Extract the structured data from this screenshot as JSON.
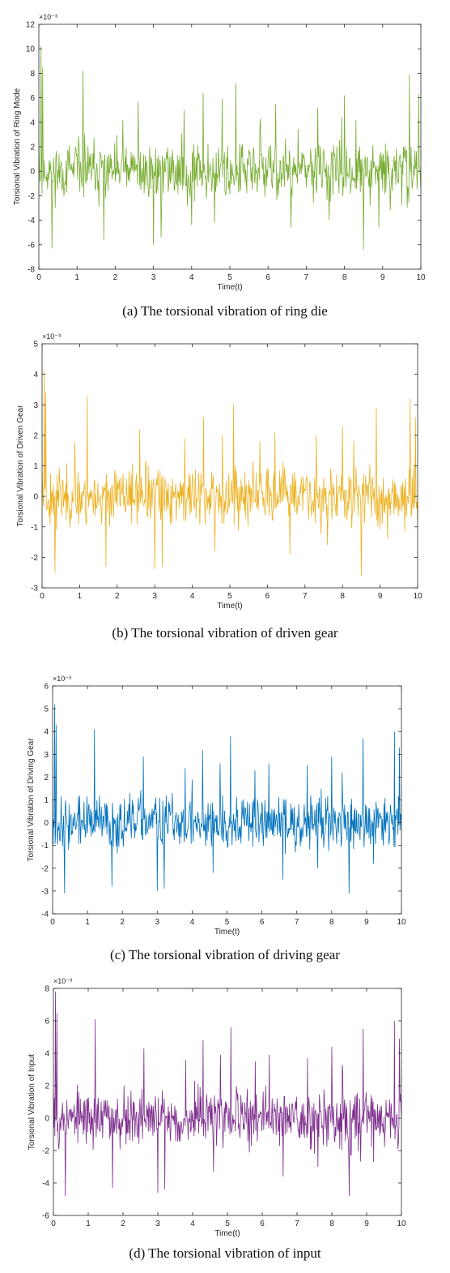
{
  "chart_data": [
    {
      "type": "line",
      "panel": "a",
      "caption": "(a) The torsional vibration of ring die",
      "xlabel": "Time(t)",
      "ylabel": "Torsional Vibration of Ring Mode",
      "y_exponent_label": "×10⁻³",
      "xlim": [
        0,
        10
      ],
      "ylim": [
        -8,
        12
      ],
      "xticks": [
        0,
        1,
        2,
        3,
        4,
        5,
        6,
        7,
        8,
        9,
        10
      ],
      "yticks": [
        -8,
        -6,
        -4,
        -2,
        0,
        2,
        4,
        6,
        8,
        10,
        12
      ],
      "color": "#77ac30",
      "peak": 10.2,
      "spikes": [
        [
          0.05,
          10.2
        ],
        [
          0.1,
          8.5
        ],
        [
          0.35,
          -6.3
        ],
        [
          1.15,
          8.2
        ],
        [
          1.7,
          -5.6
        ],
        [
          2.2,
          4.2
        ],
        [
          2.6,
          5.7
        ],
        [
          3.0,
          -6.0
        ],
        [
          3.2,
          -5.4
        ],
        [
          3.8,
          5.0
        ],
        [
          4.0,
          -4.4
        ],
        [
          4.3,
          6.4
        ],
        [
          4.6,
          -4.2
        ],
        [
          4.8,
          5.9
        ],
        [
          5.15,
          7.2
        ],
        [
          5.8,
          4.3
        ],
        [
          6.2,
          5.5
        ],
        [
          6.6,
          -4.6
        ],
        [
          7.3,
          5.2
        ],
        [
          7.6,
          -4.0
        ],
        [
          8.0,
          6.2
        ],
        [
          8.3,
          4.2
        ],
        [
          8.5,
          -6.4
        ],
        [
          8.9,
          -4.6
        ],
        [
          9.2,
          -3.2
        ],
        [
          9.7,
          7.9
        ],
        [
          9.95,
          6.3
        ]
      ],
      "noise": 2.0,
      "seed": 11
    },
    {
      "type": "line",
      "panel": "b",
      "caption": "(b) The torsional vibration of driven gear",
      "xlabel": "Time(t)",
      "ylabel": "Torsional Vibration of Driven Gear",
      "y_exponent_label": "×10⁻³",
      "xlim": [
        0,
        10
      ],
      "ylim": [
        -3,
        5
      ],
      "xticks": [
        0,
        1,
        2,
        3,
        4,
        5,
        6,
        7,
        8,
        9,
        10
      ],
      "yticks": [
        -3,
        -2,
        -1,
        0,
        1,
        2,
        3,
        4,
        5
      ],
      "color": "#edb120",
      "peak": 4.1,
      "spikes": [
        [
          0.05,
          4.1
        ],
        [
          0.1,
          3.4
        ],
        [
          0.35,
          -2.5
        ],
        [
          1.2,
          3.3
        ],
        [
          1.7,
          -2.3
        ],
        [
          2.6,
          2.2
        ],
        [
          3.0,
          -2.4
        ],
        [
          3.2,
          -2.3
        ],
        [
          3.8,
          1.9
        ],
        [
          4.3,
          2.6
        ],
        [
          4.6,
          -1.8
        ],
        [
          4.8,
          2.0
        ],
        [
          5.1,
          3.0
        ],
        [
          5.8,
          1.8
        ],
        [
          6.2,
          2.1
        ],
        [
          6.6,
          -1.9
        ],
        [
          7.3,
          2.0
        ],
        [
          7.6,
          -1.6
        ],
        [
          8.0,
          2.3
        ],
        [
          8.3,
          1.8
        ],
        [
          8.5,
          -2.6
        ],
        [
          8.9,
          2.9
        ],
        [
          9.2,
          -1.4
        ],
        [
          9.8,
          3.2
        ],
        [
          9.95,
          2.6
        ]
      ],
      "noise": 0.8,
      "seed": 23
    },
    {
      "type": "line",
      "panel": "c",
      "caption": "(c) The torsional vibration of driving gear",
      "xlabel": "Time(t)",
      "ylabel": "Torsional Vibration of Driving Gear",
      "y_exponent_label": "×10⁻³",
      "xlim": [
        0,
        10
      ],
      "ylim": [
        -4,
        6
      ],
      "xticks": [
        0,
        1,
        2,
        3,
        4,
        5,
        6,
        7,
        8,
        9,
        10
      ],
      "yticks": [
        -4,
        -3,
        -2,
        -1,
        0,
        1,
        2,
        3,
        4,
        5,
        6
      ],
      "color": "#0072bd",
      "peak": 5.2,
      "spikes": [
        [
          0.05,
          5.2
        ],
        [
          0.1,
          4.3
        ],
        [
          0.35,
          -3.1
        ],
        [
          1.2,
          4.1
        ],
        [
          1.7,
          -2.8
        ],
        [
          2.6,
          2.9
        ],
        [
          3.0,
          -3.0
        ],
        [
          3.2,
          -2.9
        ],
        [
          3.8,
          2.4
        ],
        [
          4.3,
          3.2
        ],
        [
          4.6,
          -2.2
        ],
        [
          4.8,
          2.6
        ],
        [
          5.1,
          3.8
        ],
        [
          5.8,
          2.3
        ],
        [
          6.2,
          2.6
        ],
        [
          6.6,
          -2.5
        ],
        [
          7.3,
          2.5
        ],
        [
          7.6,
          -2.0
        ],
        [
          8.0,
          2.9
        ],
        [
          8.3,
          2.2
        ],
        [
          8.5,
          -3.1
        ],
        [
          8.9,
          3.7
        ],
        [
          9.2,
          -1.8
        ],
        [
          9.8,
          4.0
        ],
        [
          9.95,
          3.3
        ]
      ],
      "noise": 1.0,
      "seed": 37
    },
    {
      "type": "line",
      "panel": "d",
      "caption": "(d) The torsional vibration of input",
      "xlabel": "Time(t)",
      "ylabel": "Torsional Vibration of Input",
      "y_exponent_label": "×10⁻³",
      "xlim": [
        0,
        10
      ],
      "ylim": [
        -6,
        8
      ],
      "xticks": [
        0,
        1,
        2,
        3,
        4,
        5,
        6,
        7,
        8,
        9,
        10
      ],
      "yticks": [
        -6,
        -4,
        -2,
        0,
        2,
        4,
        6,
        8
      ],
      "color": "#7e2f8e",
      "peak": 7.8,
      "spikes": [
        [
          0.05,
          7.8
        ],
        [
          0.1,
          6.5
        ],
        [
          0.35,
          -4.8
        ],
        [
          1.2,
          6.1
        ],
        [
          1.7,
          -4.3
        ],
        [
          2.6,
          4.3
        ],
        [
          3.0,
          -4.6
        ],
        [
          3.2,
          -4.4
        ],
        [
          3.8,
          3.6
        ],
        [
          4.3,
          4.8
        ],
        [
          4.6,
          -3.3
        ],
        [
          4.8,
          3.9
        ],
        [
          5.1,
          5.6
        ],
        [
          5.8,
          3.5
        ],
        [
          6.2,
          3.9
        ],
        [
          6.6,
          -3.6
        ],
        [
          7.3,
          3.7
        ],
        [
          7.6,
          -3.0
        ],
        [
          8.0,
          4.4
        ],
        [
          8.3,
          3.3
        ],
        [
          8.5,
          -4.8
        ],
        [
          8.9,
          5.5
        ],
        [
          9.2,
          -2.7
        ],
        [
          9.8,
          6.0
        ],
        [
          9.95,
          4.9
        ]
      ],
      "noise": 1.5,
      "seed": 53
    }
  ]
}
